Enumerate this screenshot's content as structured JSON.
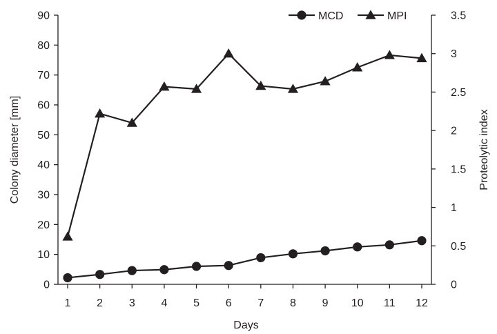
{
  "chart_data": {
    "type": "line",
    "title": "",
    "xlabel": "Days",
    "ylabel_left": "Colony diameter [mm]",
    "ylabel_right": "Proteolytic index",
    "x": [
      1,
      2,
      3,
      4,
      5,
      6,
      7,
      8,
      9,
      10,
      11,
      12
    ],
    "x_tick_labels": [
      "1",
      "2",
      "3",
      "4",
      "5",
      "6",
      "7",
      "8",
      "9",
      "10",
      "11",
      "12"
    ],
    "ylim_left": [
      0,
      90
    ],
    "ylim_right": [
      0,
      3.5
    ],
    "y_left_ticks": [
      "0",
      "10",
      "20",
      "30",
      "40",
      "50",
      "60",
      "70",
      "80",
      "90"
    ],
    "y_right_ticks": [
      "0",
      "0.5",
      "1",
      "1.5",
      "2",
      "2.5",
      "3",
      "3.5"
    ],
    "grid": false,
    "legend_position": "top-right",
    "series": [
      {
        "name": "MCD",
        "axis": "left",
        "marker": "circle",
        "color": "#231f20",
        "values": [
          2.2,
          3.3,
          4.6,
          4.9,
          6.0,
          6.3,
          8.9,
          10.2,
          11.2,
          12.5,
          13.2,
          14.6
        ]
      },
      {
        "name": "MPI",
        "axis": "right",
        "marker": "triangle",
        "color": "#231f20",
        "values": [
          0.62,
          2.22,
          2.1,
          2.57,
          2.54,
          3.0,
          2.58,
          2.54,
          2.64,
          2.82,
          2.98,
          2.94
        ]
      }
    ]
  }
}
